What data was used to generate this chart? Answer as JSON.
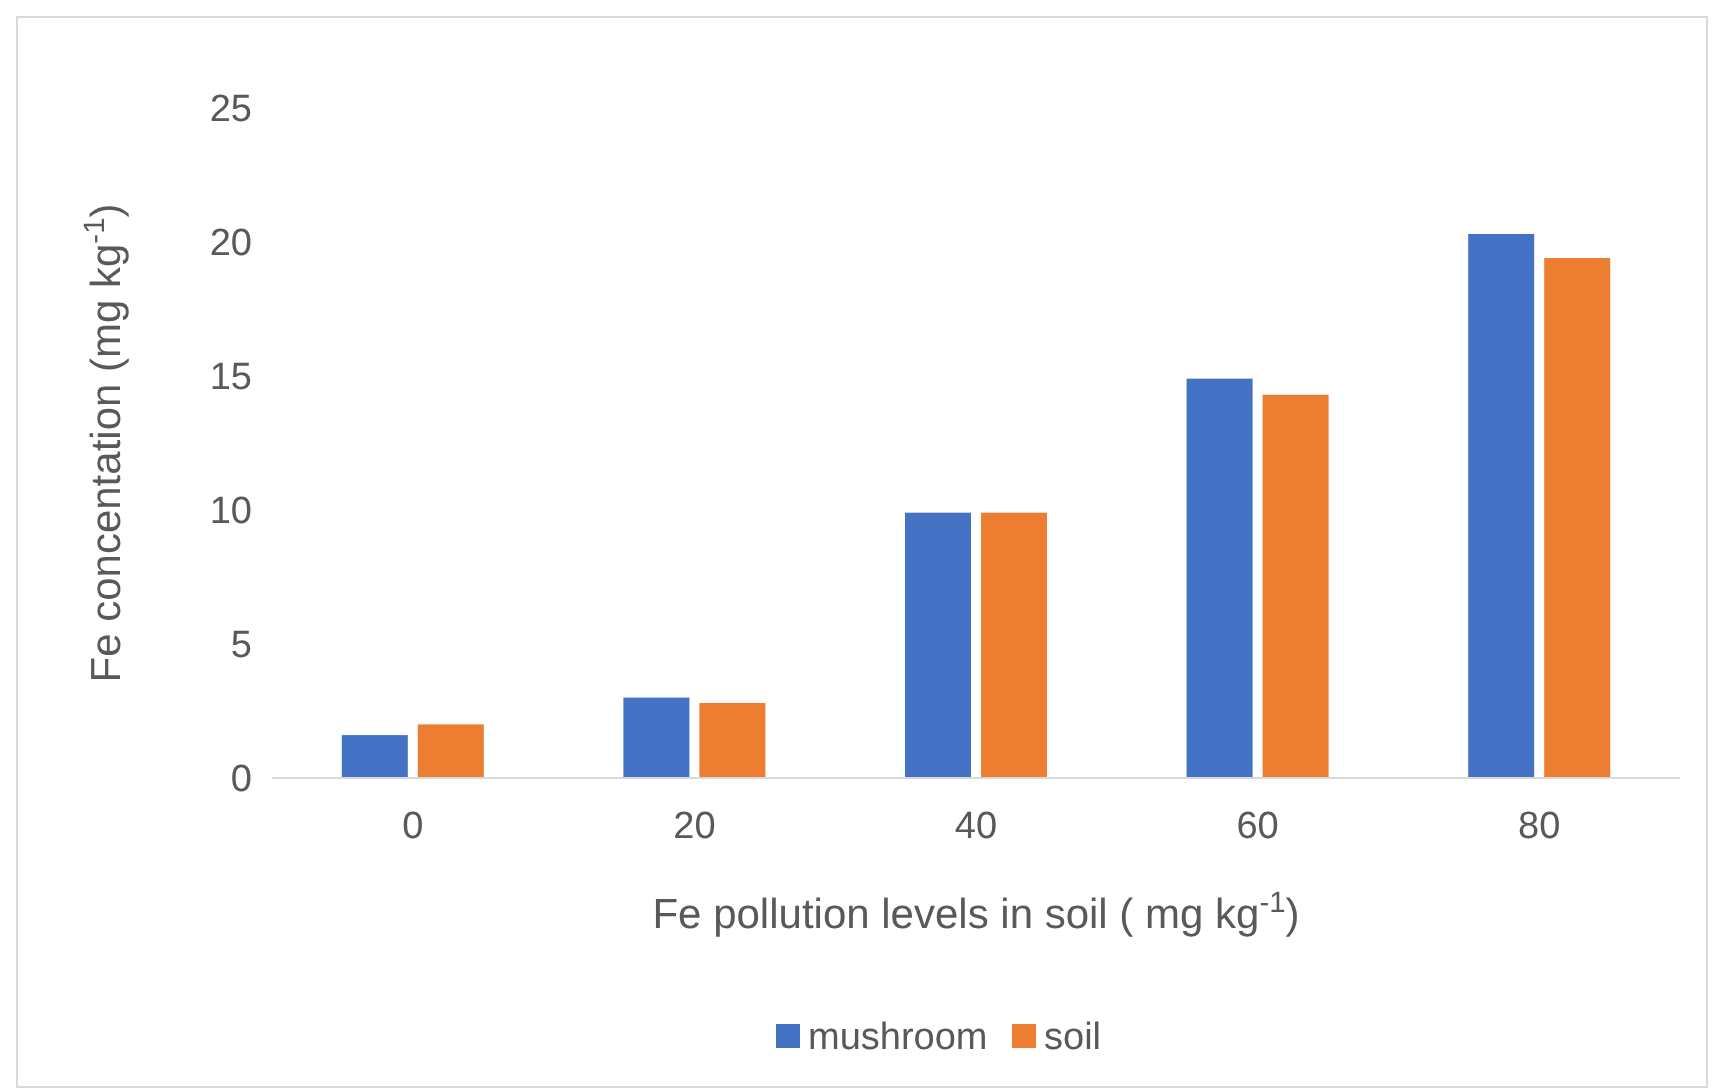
{
  "chart_data": {
    "type": "bar",
    "xlabel": "Fe pollution levels in soil ( mg kg$^{-1}$)",
    "ylabel": "Fe concentation (mg kg$^{-1}$)",
    "categories": [
      "0",
      "20",
      "40",
      "60",
      "80"
    ],
    "series": [
      {
        "name": "mushroom",
        "color": "#4472c4",
        "values": [
          1.6,
          3.0,
          9.9,
          14.9,
          20.3
        ]
      },
      {
        "name": "soil",
        "color": "#ed7d31",
        "values": [
          2.0,
          2.8,
          9.9,
          14.3,
          19.4
        ]
      }
    ],
    "ylim": [
      0,
      25
    ],
    "yticks": [
      0,
      5,
      10,
      15,
      20,
      25
    ],
    "grid": false,
    "legend": "bottom"
  }
}
